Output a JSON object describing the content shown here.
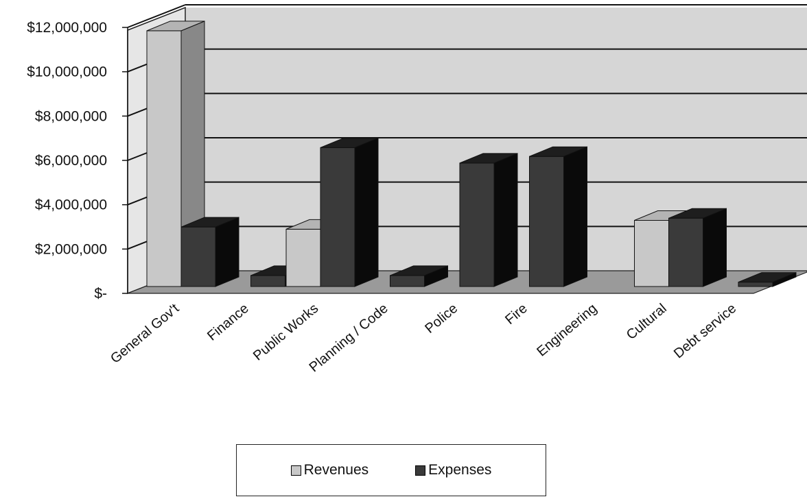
{
  "chart_data": {
    "type": "bar",
    "style": "3d-clustered-column",
    "title": "",
    "xlabel": "",
    "ylabel": "",
    "categories": [
      "General Gov't",
      "Finance",
      "Public Works",
      "Planning / Code",
      "Police",
      "Fire",
      "Engineering",
      "Cultural",
      "Debt service"
    ],
    "series": [
      {
        "name": "Revenues",
        "values": [
          11600000,
          0,
          2600000,
          0,
          0,
          0,
          0,
          3000000,
          0
        ],
        "color": "#c8c8c8"
      },
      {
        "name": "Expenses",
        "values": [
          2700000,
          500000,
          6300000,
          500000,
          5600000,
          5900000,
          0,
          3100000,
          200000
        ],
        "color": "#3a3a3a"
      }
    ],
    "y_ticks": [
      0,
      2000000,
      4000000,
      6000000,
      8000000,
      10000000,
      12000000
    ],
    "y_tick_labels": [
      "$-",
      "$2,000,000",
      "$4,000,000",
      "$6,000,000",
      "$8,000,000",
      "$10,000,000",
      "$12,000,000"
    ],
    "ylim": [
      0,
      12000000
    ],
    "grid": true,
    "legend_position": "bottom",
    "colors": {
      "wall": "#d6d6d6",
      "floor": "#9a9a9a",
      "revenues": "#c8c8c8",
      "expenses": "#3a3a3a"
    }
  }
}
